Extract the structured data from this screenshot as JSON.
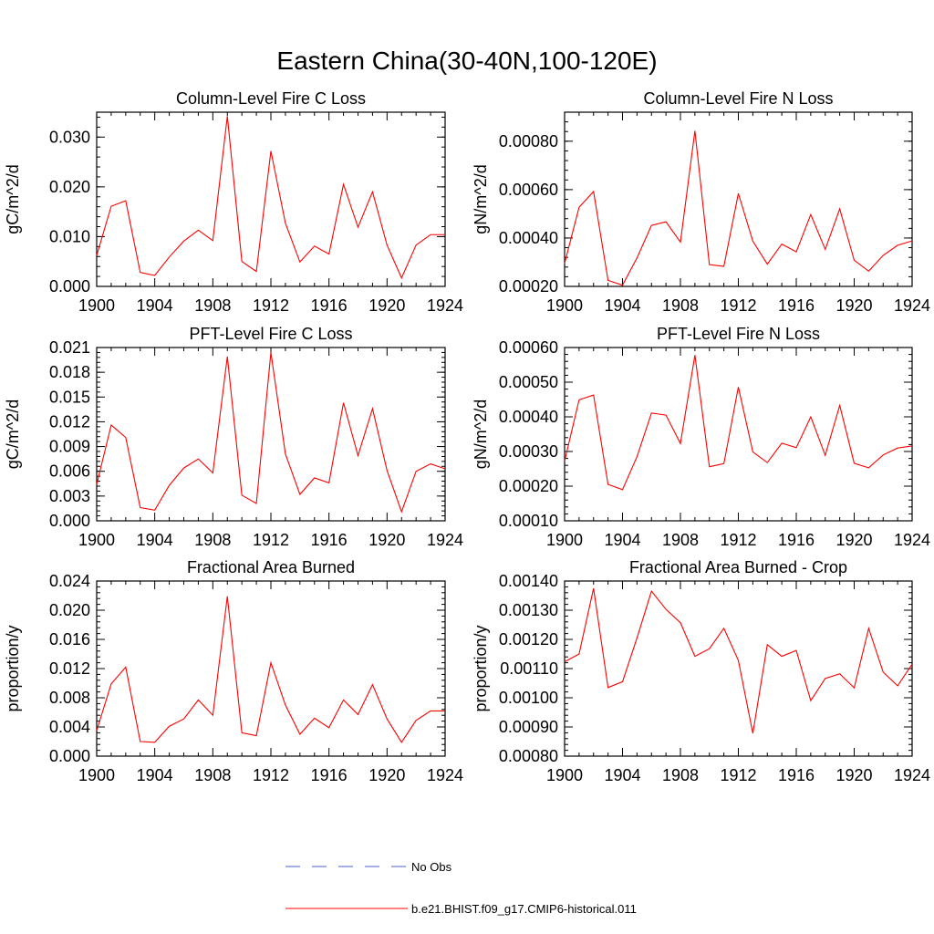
{
  "title": "Eastern China(30-40N,100-120E)",
  "x_tick_labels": [
    "1900",
    "1904",
    "1908",
    "1912",
    "1916",
    "1920",
    "1924"
  ],
  "legend": {
    "obs_label": "No Obs",
    "model_label": "b.e21.BHIST.f09_g17.CMIP6-historical.011",
    "obs_color": "#4a5fd0",
    "model_color": "#ff0000"
  },
  "chart_data": [
    {
      "type": "line",
      "title": "Column-Level Fire C Loss",
      "xlabel": "",
      "ylabel": "gC/m^2/d",
      "xlim": [
        1900,
        1924
      ],
      "ylim": [
        0,
        0.035
      ],
      "y_ticks": [
        "0.000",
        "0.010",
        "0.020",
        "0.030"
      ],
      "x": [
        1900,
        1901,
        1902,
        1903,
        1904,
        1905,
        1906,
        1907,
        1908,
        1909,
        1910,
        1911,
        1912,
        1913,
        1914,
        1915,
        1916,
        1917,
        1918,
        1919,
        1920,
        1921,
        1922,
        1923,
        1924
      ],
      "series": [
        {
          "name": "b.e21.BHIST.f09_g17.CMIP6-historical.011",
          "color": "#ff0000",
          "values": [
            0.0062,
            0.0161,
            0.0172,
            0.0028,
            0.0022,
            0.0059,
            0.0091,
            0.0113,
            0.0092,
            0.0342,
            0.005,
            0.003,
            0.0272,
            0.0127,
            0.0049,
            0.0081,
            0.0065,
            0.0205,
            0.0119,
            0.019,
            0.0083,
            0.0017,
            0.0083,
            0.0104,
            0.0104
          ]
        }
      ]
    },
    {
      "type": "line",
      "title": "Column-Level Fire N Loss",
      "xlabel": "",
      "ylabel": "gN/m^2/d",
      "xlim": [
        1900,
        1924
      ],
      "ylim": [
        0.0002,
        0.00092
      ],
      "y_ticks": [
        "0.00020",
        "0.00040",
        "0.00060",
        "0.00080"
      ],
      "x": [
        1900,
        1901,
        1902,
        1903,
        1904,
        1905,
        1906,
        1907,
        1908,
        1909,
        1910,
        1911,
        1912,
        1913,
        1914,
        1915,
        1916,
        1917,
        1918,
        1919,
        1920,
        1921,
        1922,
        1923,
        1924
      ],
      "series": [
        {
          "name": "b.e21.BHIST.f09_g17.CMIP6-historical.011",
          "color": "#ff0000",
          "values": [
            0.000295,
            0.000527,
            0.000592,
            0.000225,
            0.000205,
            0.000318,
            0.000452,
            0.000467,
            0.000383,
            0.000843,
            0.00029,
            0.000283,
            0.000584,
            0.000387,
            0.000292,
            0.000375,
            0.000343,
            0.000497,
            0.000353,
            0.00052,
            0.000308,
            0.000263,
            0.000328,
            0.00037,
            0.000388
          ]
        }
      ]
    },
    {
      "type": "line",
      "title": "PFT-Level Fire C Loss",
      "xlabel": "",
      "ylabel": "gC/m^2/d",
      "xlim": [
        1900,
        1924
      ],
      "ylim": [
        0,
        0.021
      ],
      "y_ticks": [
        "0.000",
        "0.003",
        "0.006",
        "0.009",
        "0.012",
        "0.015",
        "0.018",
        "0.021"
      ],
      "x": [
        1900,
        1901,
        1902,
        1903,
        1904,
        1905,
        1906,
        1907,
        1908,
        1909,
        1910,
        1911,
        1912,
        1913,
        1914,
        1915,
        1916,
        1917,
        1918,
        1919,
        1920,
        1921,
        1922,
        1923,
        1924
      ],
      "series": [
        {
          "name": "b.e21.BHIST.f09_g17.CMIP6-historical.011",
          "color": "#ff0000",
          "values": [
            0.0044,
            0.0116,
            0.0101,
            0.0016,
            0.0013,
            0.0043,
            0.0064,
            0.0075,
            0.0058,
            0.0199,
            0.0031,
            0.0021,
            0.0204,
            0.0081,
            0.0032,
            0.0052,
            0.0046,
            0.0143,
            0.0079,
            0.0136,
            0.0061,
            0.0011,
            0.006,
            0.0069,
            0.0063
          ]
        }
      ]
    },
    {
      "type": "line",
      "title": "PFT-Level Fire N Loss",
      "xlabel": "",
      "ylabel": "gN/m^2/d",
      "xlim": [
        1900,
        1924
      ],
      "ylim": [
        0.0001,
        0.0006
      ],
      "y_ticks": [
        "0.00010",
        "0.00020",
        "0.00030",
        "0.00040",
        "0.00050",
        "0.00060"
      ],
      "x": [
        1900,
        1901,
        1902,
        1903,
        1904,
        1905,
        1906,
        1907,
        1908,
        1909,
        1910,
        1911,
        1912,
        1913,
        1914,
        1915,
        1916,
        1917,
        1918,
        1919,
        1920,
        1921,
        1922,
        1923,
        1924
      ],
      "series": [
        {
          "name": "b.e21.BHIST.f09_g17.CMIP6-historical.011",
          "color": "#ff0000",
          "values": [
            0.000272,
            0.000449,
            0.000463,
            0.000205,
            0.00019,
            0.000285,
            0.000411,
            0.000405,
            0.000323,
            0.000578,
            0.000256,
            0.000265,
            0.000486,
            0.000299,
            0.000268,
            0.000324,
            0.000311,
            0.0004,
            0.000289,
            0.000433,
            0.000266,
            0.000253,
            0.00029,
            0.00031,
            0.000316
          ]
        }
      ]
    },
    {
      "type": "line",
      "title": "Fractional Area Burned",
      "xlabel": "",
      "ylabel": "proportion/y",
      "xlim": [
        1900,
        1924
      ],
      "ylim": [
        0,
        0.024
      ],
      "y_ticks": [
        "0.000",
        "0.004",
        "0.008",
        "0.012",
        "0.016",
        "0.020",
        "0.024"
      ],
      "x": [
        1900,
        1901,
        1902,
        1903,
        1904,
        1905,
        1906,
        1907,
        1908,
        1909,
        1910,
        1911,
        1912,
        1913,
        1914,
        1915,
        1916,
        1917,
        1918,
        1919,
        1920,
        1921,
        1922,
        1923,
        1924
      ],
      "series": [
        {
          "name": "b.e21.BHIST.f09_g17.CMIP6-historical.011",
          "color": "#ff0000",
          "values": [
            0.0035,
            0.0099,
            0.0122,
            0.002,
            0.0019,
            0.0041,
            0.0051,
            0.0077,
            0.0056,
            0.0219,
            0.0032,
            0.0028,
            0.0128,
            0.007,
            0.003,
            0.0052,
            0.0039,
            0.0077,
            0.0057,
            0.0098,
            0.0051,
            0.0019,
            0.0049,
            0.0062,
            0.0062
          ]
        }
      ]
    },
    {
      "type": "line",
      "title": "Fractional Area Burned - Crop",
      "xlabel": "",
      "ylabel": "proportion/y",
      "xlim": [
        1900,
        1924
      ],
      "ylim": [
        0.0008,
        0.0014
      ],
      "y_ticks": [
        "0.00080",
        "0.00090",
        "0.00100",
        "0.00110",
        "0.00120",
        "0.00130",
        "0.00140"
      ],
      "x": [
        1900,
        1901,
        1902,
        1903,
        1904,
        1905,
        1906,
        1907,
        1908,
        1909,
        1910,
        1911,
        1912,
        1913,
        1914,
        1915,
        1916,
        1917,
        1918,
        1919,
        1920,
        1921,
        1922,
        1923,
        1924
      ],
      "series": [
        {
          "name": "b.e21.BHIST.f09_g17.CMIP6-historical.011",
          "color": "#ff0000",
          "values": [
            0.001123,
            0.00115,
            0.001375,
            0.001035,
            0.001055,
            0.001205,
            0.001365,
            0.001303,
            0.001257,
            0.001142,
            0.001168,
            0.001238,
            0.001128,
            0.000878,
            0.001182,
            0.001142,
            0.001162,
            0.00099,
            0.001066,
            0.001082,
            0.001034,
            0.001238,
            0.001088,
            0.001041,
            0.001115
          ]
        }
      ]
    }
  ]
}
